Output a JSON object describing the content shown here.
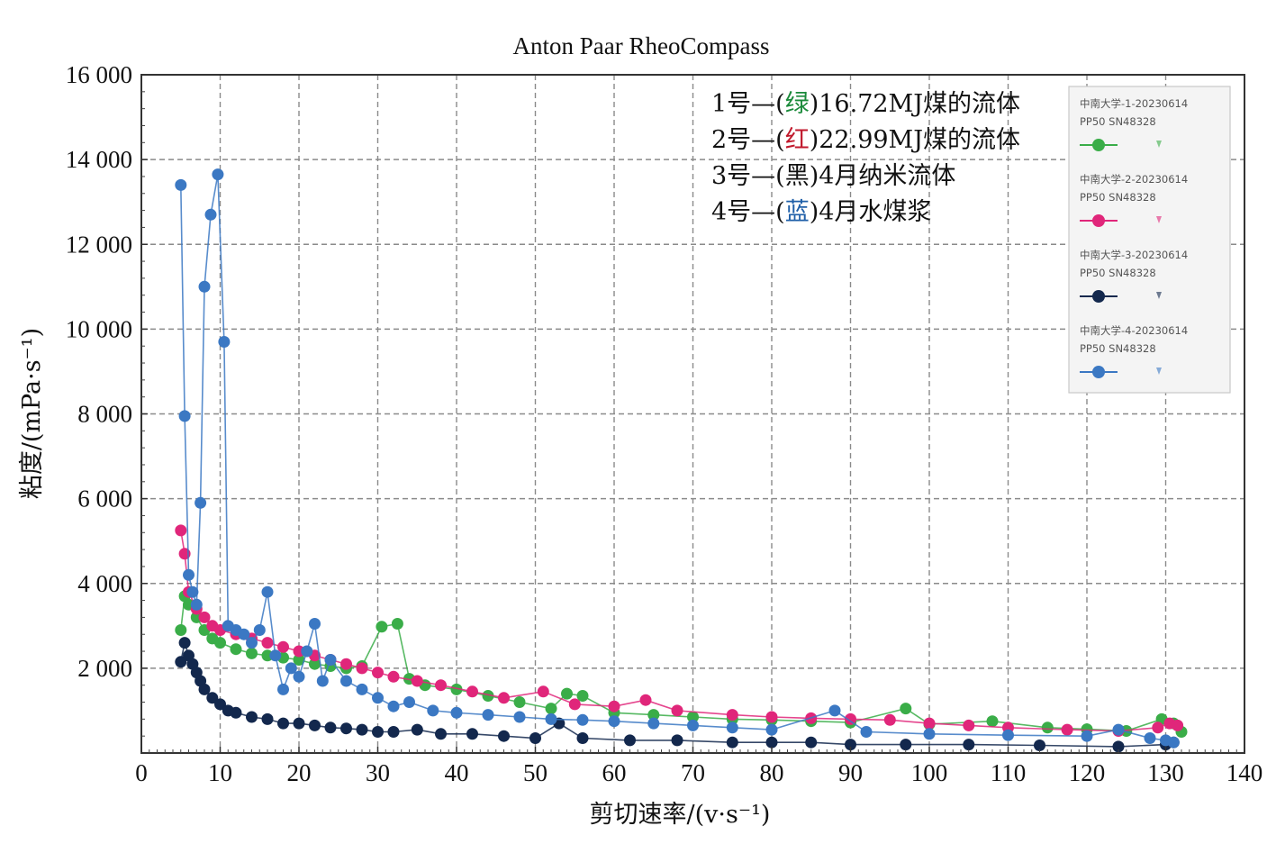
{
  "chart_data": {
    "type": "line",
    "title": "Anton Paar RheoCompass",
    "xlabel": "剪切速率/(v·s⁻¹)",
    "ylabel": "粘度/(mPa·s⁻¹)",
    "xlim": [
      0,
      140
    ],
    "ylim": [
      0,
      16000
    ],
    "x_ticks": [
      "0",
      "10",
      "20",
      "30",
      "40",
      "50",
      "60",
      "70",
      "80",
      "90",
      "100",
      "110",
      "120",
      "130",
      "140"
    ],
    "y_ticks": [
      {
        "value": 2000,
        "label": "2 000"
      },
      {
        "value": 4000,
        "label": "4 000"
      },
      {
        "value": 6000,
        "label": "6 000"
      },
      {
        "value": 8000,
        "label": "8 000"
      },
      {
        "value": 10000,
        "label": "10 000"
      },
      {
        "value": 12000,
        "label": "12 000"
      },
      {
        "value": 14000,
        "label": "14 000"
      },
      {
        "value": 16000,
        "label": "16 000"
      }
    ],
    "grid": true,
    "annotations": [
      {
        "prefix": "1号—(",
        "color_word": "绿",
        "suffix": ")16.72MJ煤的流体",
        "color": "#1a8a3a"
      },
      {
        "prefix": "2号—(",
        "color_word": "红",
        "suffix": ")22.99MJ煤的流体",
        "color": "#c0192c"
      },
      {
        "prefix": "3号—(黑)4月纳米流体",
        "color_word": "",
        "suffix": "",
        "color": "#111111"
      },
      {
        "prefix": "4号—(",
        "color_word": "蓝",
        "suffix": ")4月水煤浆",
        "color": "#1f5fa8"
      }
    ],
    "legend_position": "top-right",
    "series": [
      {
        "name": "中南大学-1-20230614",
        "legend_sub": "PP50 SN48328",
        "color": "#3aad48",
        "points": [
          [
            5,
            2900
          ],
          [
            5.5,
            3700
          ],
          [
            6,
            3500
          ],
          [
            7,
            3200
          ],
          [
            8,
            2900
          ],
          [
            9,
            2700
          ],
          [
            10,
            2600
          ],
          [
            12,
            2450
          ],
          [
            14,
            2350
          ],
          [
            16,
            2300
          ],
          [
            18,
            2250
          ],
          [
            20,
            2200
          ],
          [
            22,
            2100
          ],
          [
            24,
            2050
          ],
          [
            26,
            2000
          ],
          [
            28,
            2050
          ],
          [
            30.5,
            2980
          ],
          [
            32.5,
            3050
          ],
          [
            34,
            1750
          ],
          [
            36,
            1600
          ],
          [
            40,
            1500
          ],
          [
            44,
            1350
          ],
          [
            48,
            1200
          ],
          [
            52,
            1050
          ],
          [
            54,
            1400
          ],
          [
            56,
            1350
          ],
          [
            60,
            950
          ],
          [
            65,
            900
          ],
          [
            70,
            850
          ],
          [
            75,
            800
          ],
          [
            80,
            780
          ],
          [
            85,
            750
          ],
          [
            90,
            720
          ],
          [
            97,
            1050
          ],
          [
            100,
            680
          ],
          [
            108,
            750
          ],
          [
            115,
            600
          ],
          [
            120,
            560
          ],
          [
            125,
            520
          ],
          [
            129.5,
            800
          ],
          [
            131,
            700
          ],
          [
            132,
            500
          ]
        ]
      },
      {
        "name": "中南大学-2-20230614",
        "legend_sub": "PP50 SN48328",
        "color": "#e0267a",
        "points": [
          [
            5,
            5250
          ],
          [
            5.5,
            4700
          ],
          [
            6,
            3800
          ],
          [
            7,
            3400
          ],
          [
            8,
            3200
          ],
          [
            9,
            3000
          ],
          [
            10,
            2900
          ],
          [
            12,
            2800
          ],
          [
            14,
            2700
          ],
          [
            16,
            2600
          ],
          [
            18,
            2500
          ],
          [
            20,
            2400
          ],
          [
            22,
            2300
          ],
          [
            24,
            2200
          ],
          [
            26,
            2100
          ],
          [
            28,
            2000
          ],
          [
            30,
            1900
          ],
          [
            32,
            1800
          ],
          [
            35,
            1700
          ],
          [
            38,
            1600
          ],
          [
            42,
            1450
          ],
          [
            46,
            1300
          ],
          [
            51,
            1450
          ],
          [
            55,
            1150
          ],
          [
            60,
            1100
          ],
          [
            64,
            1250
          ],
          [
            68,
            1000
          ],
          [
            75,
            900
          ],
          [
            80,
            850
          ],
          [
            85,
            820
          ],
          [
            90,
            800
          ],
          [
            95,
            780
          ],
          [
            100,
            700
          ],
          [
            105,
            650
          ],
          [
            110,
            600
          ],
          [
            117.5,
            550
          ],
          [
            124,
            520
          ],
          [
            129,
            600
          ],
          [
            130.5,
            700
          ],
          [
            131.5,
            650
          ]
        ]
      },
      {
        "name": "中南大学-3-20230614",
        "legend_sub": "PP50 SN48328",
        "color": "#13284d",
        "points": [
          [
            5,
            2150
          ],
          [
            5.5,
            2600
          ],
          [
            6,
            2300
          ],
          [
            6.5,
            2100
          ],
          [
            7,
            1900
          ],
          [
            7.5,
            1700
          ],
          [
            8,
            1500
          ],
          [
            9,
            1300
          ],
          [
            10,
            1150
          ],
          [
            11,
            1000
          ],
          [
            12,
            950
          ],
          [
            14,
            850
          ],
          [
            16,
            800
          ],
          [
            18,
            700
          ],
          [
            20,
            700
          ],
          [
            22,
            650
          ],
          [
            24,
            600
          ],
          [
            26,
            580
          ],
          [
            28,
            550
          ],
          [
            30,
            500
          ],
          [
            32,
            500
          ],
          [
            35,
            550
          ],
          [
            38,
            450
          ],
          [
            42,
            450
          ],
          [
            46,
            400
          ],
          [
            50,
            350
          ],
          [
            53,
            700
          ],
          [
            56,
            350
          ],
          [
            62,
            300
          ],
          [
            68,
            300
          ],
          [
            75,
            250
          ],
          [
            80,
            250
          ],
          [
            85,
            250
          ],
          [
            90,
            200
          ],
          [
            97,
            200
          ],
          [
            105,
            200
          ],
          [
            114,
            180
          ],
          [
            124,
            150
          ],
          [
            130,
            200
          ],
          [
            131,
            250
          ]
        ]
      },
      {
        "name": "中南大学-4-20230614",
        "legend_sub": "PP50 SN48328",
        "color": "#3b78c3",
        "points": [
          [
            5,
            13400
          ],
          [
            5.5,
            7950
          ],
          [
            6,
            4200
          ],
          [
            6.5,
            3800
          ],
          [
            7,
            3500
          ],
          [
            7.5,
            5900
          ],
          [
            8,
            11000
          ],
          [
            8.8,
            12700
          ],
          [
            9.7,
            13650
          ],
          [
            10.5,
            9700
          ],
          [
            11,
            3000
          ],
          [
            12,
            2900
          ],
          [
            13,
            2800
          ],
          [
            14,
            2600
          ],
          [
            15,
            2900
          ],
          [
            16,
            3800
          ],
          [
            17,
            2300
          ],
          [
            18,
            1500
          ],
          [
            19,
            2000
          ],
          [
            20,
            1800
          ],
          [
            21,
            2400
          ],
          [
            22,
            3050
          ],
          [
            23,
            1700
          ],
          [
            24,
            2200
          ],
          [
            26,
            1700
          ],
          [
            28,
            1500
          ],
          [
            30,
            1300
          ],
          [
            32,
            1100
          ],
          [
            34,
            1200
          ],
          [
            37,
            1000
          ],
          [
            40,
            950
          ],
          [
            44,
            900
          ],
          [
            48,
            850
          ],
          [
            52,
            800
          ],
          [
            56,
            780
          ],
          [
            60,
            750
          ],
          [
            65,
            700
          ],
          [
            70,
            650
          ],
          [
            75,
            600
          ],
          [
            80,
            550
          ],
          [
            88,
            1000
          ],
          [
            92,
            500
          ],
          [
            100,
            450
          ],
          [
            110,
            420
          ],
          [
            120,
            400
          ],
          [
            124,
            550
          ],
          [
            128,
            350
          ],
          [
            130,
            300
          ],
          [
            131,
            250
          ]
        ]
      }
    ]
  }
}
